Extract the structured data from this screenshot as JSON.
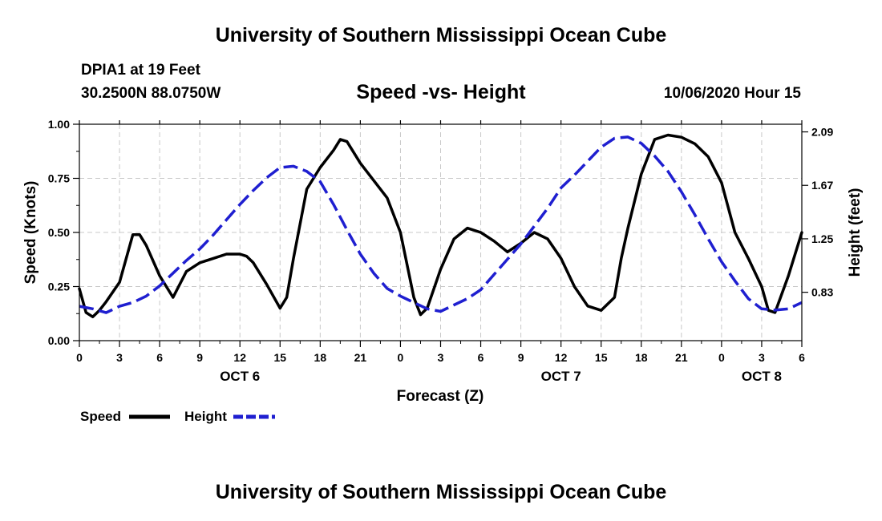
{
  "header": {
    "title": "University of Southern Mississippi Ocean Cube",
    "station": "DPIA1 at 19 Feet",
    "coords": "30.2500N 88.0750W",
    "subtitle": "Speed -vs- Height",
    "datetime": "10/06/2020 Hour 15"
  },
  "footer": {
    "title": "University of Southern Mississippi Ocean Cube"
  },
  "chart_data": {
    "type": "line",
    "title": "Speed -vs- Height",
    "xlabel": "Forecast (Z)",
    "ylabel": "Speed (Knots)",
    "y2label": "Height (feet)",
    "xlim": [
      0,
      54
    ],
    "ylim": [
      0,
      1
    ],
    "y2lim": [
      0.45,
      2.15
    ],
    "x_ticks": [
      0,
      3,
      6,
      9,
      12,
      15,
      18,
      21,
      24,
      27,
      30,
      33,
      36,
      39,
      42,
      45,
      48,
      51,
      54
    ],
    "x_tick_labels": [
      "0",
      "3",
      "6",
      "9",
      "12",
      "15",
      "18",
      "21",
      "0",
      "3",
      "6",
      "9",
      "12",
      "15",
      "18",
      "21",
      "0",
      "3",
      "6"
    ],
    "y_ticks": [
      0,
      0.25,
      0.5,
      0.75,
      1
    ],
    "y_tick_labels": [
      "0.00",
      "0.25",
      "0.50",
      "0.75",
      "1.00"
    ],
    "y2_ticks": [
      0.83,
      1.25,
      1.67,
      2.09
    ],
    "y2_tick_labels": [
      "0.83",
      "1.25",
      "1.67",
      "2.09"
    ],
    "day_labels": [
      {
        "x": 12,
        "label": "OCT 6"
      },
      {
        "x": 36,
        "label": "OCT 7"
      },
      {
        "x": 51,
        "label": "OCT 8"
      }
    ],
    "grid": true,
    "legend_position": "bottom-left",
    "series": [
      {
        "name": "Speed",
        "axis": "left",
        "color": "#000000",
        "style": "solid",
        "x": [
          0,
          0.5,
          1,
          1.5,
          2,
          3,
          4,
          4.5,
          5,
          6,
          7,
          8,
          9,
          10,
          11,
          12,
          12.5,
          13,
          14,
          15,
          15.5,
          16,
          17,
          18,
          19,
          19.5,
          20,
          21,
          22,
          23,
          24,
          25,
          25.5,
          26,
          27,
          28,
          29,
          30,
          31,
          32,
          33,
          34,
          35,
          36,
          37,
          38,
          39,
          40,
          40.5,
          41,
          42,
          43,
          44,
          45,
          46,
          47,
          48,
          49,
          50,
          51,
          51.5,
          52,
          53,
          54
        ],
        "values": [
          0.24,
          0.13,
          0.11,
          0.14,
          0.18,
          0.27,
          0.49,
          0.49,
          0.44,
          0.3,
          0.2,
          0.32,
          0.36,
          0.38,
          0.4,
          0.4,
          0.39,
          0.36,
          0.26,
          0.15,
          0.2,
          0.38,
          0.7,
          0.8,
          0.88,
          0.93,
          0.92,
          0.82,
          0.74,
          0.66,
          0.5,
          0.2,
          0.12,
          0.15,
          0.33,
          0.47,
          0.52,
          0.5,
          0.46,
          0.41,
          0.45,
          0.5,
          0.47,
          0.38,
          0.25,
          0.16,
          0.14,
          0.2,
          0.38,
          0.52,
          0.77,
          0.93,
          0.95,
          0.94,
          0.91,
          0.85,
          0.73,
          0.5,
          0.38,
          0.25,
          0.14,
          0.13,
          0.3,
          0.5
        ]
      },
      {
        "name": "Height",
        "axis": "right",
        "color": "#1f1fd0",
        "style": "dashed",
        "x": [
          0,
          1,
          2,
          3,
          4,
          5,
          6,
          7,
          8,
          9,
          10,
          11,
          12,
          13,
          14,
          15,
          16,
          17,
          18,
          19,
          20,
          21,
          22,
          23,
          24,
          25,
          26,
          27,
          28,
          29,
          30,
          31,
          32,
          33,
          34,
          35,
          36,
          37,
          38,
          39,
          40,
          41,
          42,
          43,
          44,
          45,
          46,
          47,
          48,
          49,
          50,
          51,
          52,
          53,
          54
        ],
        "values": [
          0.72,
          0.7,
          0.67,
          0.72,
          0.75,
          0.8,
          0.88,
          0.98,
          1.08,
          1.17,
          1.28,
          1.4,
          1.52,
          1.63,
          1.73,
          1.81,
          1.82,
          1.78,
          1.7,
          1.52,
          1.32,
          1.13,
          0.98,
          0.86,
          0.8,
          0.75,
          0.7,
          0.68,
          0.73,
          0.78,
          0.85,
          0.97,
          1.09,
          1.21,
          1.35,
          1.49,
          1.65,
          1.75,
          1.86,
          1.97,
          2.04,
          2.05,
          2.0,
          1.9,
          1.78,
          1.62,
          1.44,
          1.25,
          1.07,
          0.92,
          0.78,
          0.7,
          0.69,
          0.7,
          0.75
        ]
      }
    ]
  }
}
